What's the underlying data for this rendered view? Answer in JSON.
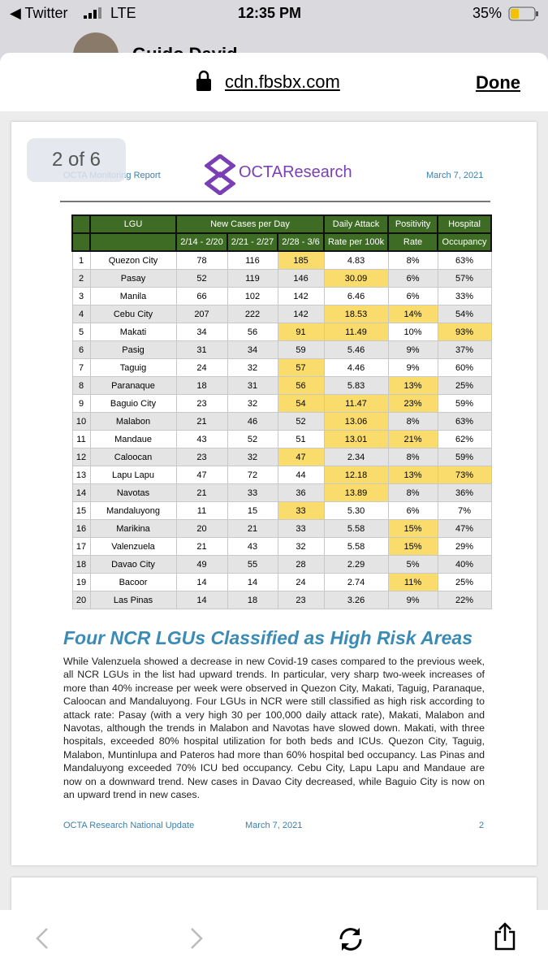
{
  "status_bar": {
    "back_app": "◀ Twitter",
    "network": "LTE",
    "time": "12:35 PM",
    "battery": "35%"
  },
  "background_header": {
    "name": "Guido David"
  },
  "browser": {
    "url": "cdn.fbsbx.com",
    "done": "Done",
    "page_indicator": "2 of 6"
  },
  "document": {
    "header": {
      "left": "OCTA Monitoring Report",
      "logo": "OCTAResearch",
      "date": "March 7, 2021"
    },
    "table": {
      "group_headers": [
        "LGU",
        "New Cases per Day",
        "Daily Attack",
        "Positivity",
        "Hospital"
      ],
      "sub_headers": [
        "2/14 - 2/20",
        "2/21 - 2/27",
        "2/28 - 3/6",
        "Rate per 100k",
        "Rate",
        "Occupancy"
      ],
      "highlight_color": "#f9dc6b",
      "rows": [
        [
          "1",
          "Quezon City",
          "78",
          "116",
          "185",
          "4.83",
          "8%",
          "63%"
        ],
        [
          "2",
          "Pasay",
          "52",
          "119",
          "146",
          "30.09",
          "6%",
          "57%"
        ],
        [
          "3",
          "Manila",
          "66",
          "102",
          "142",
          "6.46",
          "6%",
          "33%"
        ],
        [
          "4",
          "Cebu City",
          "207",
          "222",
          "142",
          "18.53",
          "14%",
          "54%"
        ],
        [
          "5",
          "Makati",
          "34",
          "56",
          "91",
          "11.49",
          "10%",
          "93%"
        ],
        [
          "6",
          "Pasig",
          "31",
          "34",
          "59",
          "5.46",
          "9%",
          "37%"
        ],
        [
          "7",
          "Taguig",
          "24",
          "32",
          "57",
          "4.46",
          "9%",
          "60%"
        ],
        [
          "8",
          "Paranaque",
          "18",
          "31",
          "56",
          "5.83",
          "13%",
          "25%"
        ],
        [
          "9",
          "Baguio City",
          "23",
          "32",
          "54",
          "11.47",
          "23%",
          "59%"
        ],
        [
          "10",
          "Malabon",
          "21",
          "46",
          "52",
          "13.06",
          "8%",
          "63%"
        ],
        [
          "11",
          "Mandaue",
          "43",
          "52",
          "51",
          "13.01",
          "21%",
          "62%"
        ],
        [
          "12",
          "Caloocan",
          "23",
          "32",
          "47",
          "2.34",
          "8%",
          "59%"
        ],
        [
          "13",
          "Lapu Lapu",
          "47",
          "72",
          "44",
          "12.18",
          "13%",
          "73%"
        ],
        [
          "14",
          "Navotas",
          "21",
          "33",
          "36",
          "13.89",
          "8%",
          "36%"
        ],
        [
          "15",
          "Mandaluyong",
          "11",
          "15",
          "33",
          "5.30",
          "6%",
          "7%"
        ],
        [
          "16",
          "Marikina",
          "20",
          "21",
          "33",
          "5.58",
          "15%",
          "47%"
        ],
        [
          "17",
          "Valenzuela",
          "21",
          "43",
          "32",
          "5.58",
          "15%",
          "29%"
        ],
        [
          "18",
          "Davao City",
          "49",
          "55",
          "28",
          "2.29",
          "5%",
          "40%"
        ],
        [
          "19",
          "Bacoor",
          "14",
          "14",
          "24",
          "2.74",
          "11%",
          "25%"
        ],
        [
          "20",
          "Las Pinas",
          "14",
          "18",
          "23",
          "3.26",
          "9%",
          "22%"
        ]
      ],
      "highlights": [
        [
          4
        ],
        [
          5
        ],
        [],
        [
          5,
          6
        ],
        [
          4,
          5,
          7
        ],
        [],
        [
          4
        ],
        [
          4,
          6
        ],
        [
          4,
          5,
          6
        ],
        [
          5
        ],
        [
          5,
          6
        ],
        [
          4
        ],
        [
          5,
          6,
          7
        ],
        [
          5
        ],
        [
          4
        ],
        [
          6
        ],
        [
          6
        ],
        [],
        [
          6
        ],
        []
      ]
    },
    "heading": "Four NCR LGUs Classified as High Risk Areas",
    "body": "While Valenzuela showed a decrease in new Covid-19 cases compared to the previous week, all NCR LGUs in the list had upward trends. In particular, very sharp two-week increases of more than 40% increase per week were observed in Quezon City, Makati, Taguig, Paranaque, Caloocan and Mandaluyong. Four LGUs in NCR were still classified as high risk according to attack rate: Pasay (with a very high 30 per 100,000 daily attack rate), Makati, Malabon and Navotas, although the trends in Malabon and Navotas have slowed down.  Makati, with three hospitals, exceeded 80% hospital utilization for both beds and ICUs. Quezon City, Taguig, Malabon, Muntinlupa and Pateros had more than 60% hospital bed occupancy. Las Pinas and Mandaluyong exceeded 70% ICU bed occupancy. Cebu City, Lapu Lapu and Mandaue are now on a downward trend. New cases in Davao City decreased, while Baguio City is now on an upward trend in new cases.",
    "footer": {
      "left": "OCTA Research National Update",
      "date": "March 7, 2021",
      "page": "2"
    }
  }
}
